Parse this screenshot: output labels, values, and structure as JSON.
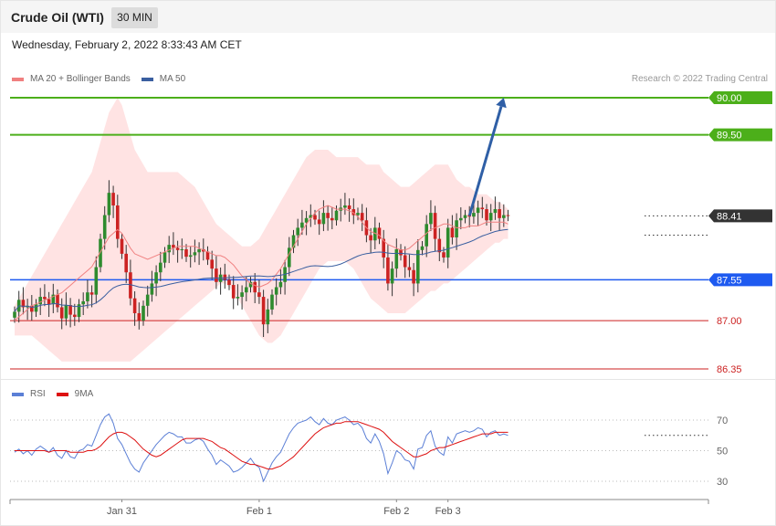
{
  "header": {
    "title": "Crude Oil (WTI)",
    "timeframe": "30 MIN",
    "datetime": "Wednesday, February 2, 2022 8:33:43 AM CET",
    "credit": "Research © 2022 Trading Central"
  },
  "colors": {
    "bollinger": "#f08080",
    "band_fill": "#ffe3e3",
    "ma50": "#3a5fa0",
    "target": "#4caf1a",
    "pivot": "#1e5af0",
    "support": "#cc2222",
    "last": "#333333",
    "arrow": "#2f5fa6",
    "candle_up": "#2e8b2e",
    "candle_down": "#cc2222",
    "rsi": "#5b7fd6",
    "rsi_ma": "#dd1111"
  },
  "legend_main": [
    {
      "label": "MA 20 + Bollinger Bands",
      "color": "#f08080"
    },
    {
      "label": "MA 50",
      "color": "#3a5fa0"
    }
  ],
  "legend_rsi": [
    {
      "label": "RSI",
      "color": "#5b7fd6"
    },
    {
      "label": "9MA",
      "color": "#dd1111"
    }
  ],
  "chart_data": [
    {
      "type": "candlestick",
      "ylim": [
        86.35,
        90.0
      ],
      "x_ticks": [
        {
          "label": "Jan 31",
          "index": 25
        },
        {
          "label": "Feb 1",
          "index": 57
        },
        {
          "label": "Feb 2",
          "index": 89
        },
        {
          "label": "Feb 3",
          "index": 101
        }
      ],
      "levels": [
        {
          "label": "90.00",
          "value": 90.0,
          "kind": "target",
          "style": "solid"
        },
        {
          "label": "89.50",
          "value": 89.5,
          "kind": "target",
          "style": "solid"
        },
        {
          "label": "88.41",
          "value": 88.41,
          "kind": "last",
          "style": "dotted"
        },
        {
          "label": "87.55",
          "value": 87.55,
          "kind": "pivot",
          "style": "solid"
        },
        {
          "label": "87.00",
          "value": 87.0,
          "kind": "support",
          "style": "thin"
        },
        {
          "label": "86.35",
          "value": 86.35,
          "kind": "support",
          "style": "thin"
        }
      ],
      "ma50_last": 88.15,
      "projection": {
        "from_index": 106,
        "from_value": 88.41,
        "to_index": 114,
        "to_value": 90.0
      },
      "close": [
        87.12,
        87.28,
        87.18,
        87.2,
        87.12,
        87.22,
        87.32,
        87.29,
        87.22,
        87.35,
        87.18,
        87.03,
        87.21,
        87.08,
        87.05,
        87.22,
        87.26,
        87.38,
        87.35,
        87.72,
        88.1,
        88.42,
        88.72,
        88.55,
        88.1,
        87.9,
        87.65,
        87.3,
        87.1,
        87.0,
        87.2,
        87.35,
        87.5,
        87.65,
        87.78,
        87.92,
        88.02,
        87.98,
        87.95,
        87.96,
        87.86,
        87.88,
        87.92,
        87.96,
        87.93,
        87.82,
        87.7,
        87.52,
        87.62,
        87.55,
        87.48,
        87.3,
        87.32,
        87.38,
        87.45,
        87.52,
        87.38,
        87.32,
        86.95,
        87.15,
        87.35,
        87.45,
        87.52,
        87.72,
        87.98,
        88.15,
        88.25,
        88.32,
        88.38,
        88.42,
        88.36,
        88.3,
        88.45,
        88.38,
        88.35,
        88.48,
        88.52,
        88.55,
        88.5,
        88.42,
        88.45,
        88.35,
        88.15,
        88.08,
        88.25,
        88.1,
        87.85,
        87.5,
        87.7,
        87.96,
        87.88,
        87.72,
        87.68,
        87.5,
        87.95,
        88.0,
        88.3,
        88.45,
        88.1,
        87.92,
        87.85,
        88.25,
        88.12,
        88.35,
        88.38,
        88.42,
        88.4,
        88.45,
        88.52,
        88.5,
        88.35,
        88.45,
        88.5,
        88.38,
        88.42,
        88.41
      ],
      "bb_upper": [
        87.2,
        87.3,
        87.4,
        87.5,
        87.6,
        87.7,
        87.8,
        87.9,
        88.0,
        88.1,
        88.2,
        88.3,
        88.4,
        88.5,
        88.6,
        88.7,
        88.8,
        88.9,
        89.0,
        89.2,
        89.4,
        89.6,
        89.8,
        89.9,
        90.0,
        89.9,
        89.7,
        89.5,
        89.3,
        89.2,
        89.1,
        89.0,
        89.0,
        89.0,
        89.0,
        89.0,
        89.0,
        89.0,
        89.0,
        88.95,
        88.9,
        88.85,
        88.8,
        88.7,
        88.6,
        88.5,
        88.4,
        88.3,
        88.25,
        88.2,
        88.15,
        88.1,
        88.05,
        88.0,
        88.0,
        88.0,
        88.05,
        88.1,
        88.2,
        88.3,
        88.4,
        88.5,
        88.6,
        88.7,
        88.8,
        88.9,
        89.0,
        89.1,
        89.2,
        89.25,
        89.3,
        89.3,
        89.3,
        89.3,
        89.25,
        89.2,
        89.2,
        89.2,
        89.2,
        89.2,
        89.2,
        89.15,
        89.1,
        89.1,
        89.1,
        89.1,
        89.0,
        88.95,
        88.9,
        88.85,
        88.8,
        88.8,
        88.8,
        88.85,
        88.9,
        88.95,
        89.0,
        89.05,
        89.1,
        89.1,
        89.1,
        89.1,
        89.0,
        88.9,
        88.85,
        88.8,
        88.8,
        88.75,
        88.7,
        88.7,
        88.7,
        88.65,
        88.6,
        88.6,
        88.55,
        88.5
      ],
      "bb_lower": [
        86.8,
        86.8,
        86.8,
        86.8,
        86.8,
        86.75,
        86.7,
        86.65,
        86.6,
        86.55,
        86.5,
        86.45,
        86.45,
        86.45,
        86.45,
        86.45,
        86.45,
        86.45,
        86.45,
        86.45,
        86.45,
        86.45,
        86.45,
        86.45,
        86.45,
        86.45,
        86.45,
        86.45,
        86.5,
        86.55,
        86.6,
        86.65,
        86.7,
        86.75,
        86.8,
        86.85,
        86.9,
        86.95,
        87.0,
        87.05,
        87.1,
        87.15,
        87.2,
        87.25,
        87.3,
        87.35,
        87.4,
        87.45,
        87.5,
        87.5,
        87.45,
        87.4,
        87.3,
        87.2,
        87.1,
        87.0,
        86.9,
        86.8,
        86.75,
        86.7,
        86.7,
        86.75,
        86.8,
        86.9,
        87.0,
        87.1,
        87.2,
        87.3,
        87.4,
        87.5,
        87.6,
        87.7,
        87.75,
        87.8,
        87.8,
        87.8,
        87.8,
        87.8,
        87.75,
        87.7,
        87.6,
        87.5,
        87.4,
        87.3,
        87.25,
        87.2,
        87.15,
        87.1,
        87.1,
        87.1,
        87.1,
        87.1,
        87.15,
        87.2,
        87.25,
        87.3,
        87.35,
        87.4,
        87.4,
        87.45,
        87.5,
        87.5,
        87.55,
        87.6,
        87.65,
        87.7,
        87.75,
        87.8,
        87.85,
        87.9,
        87.95,
        88.0,
        88.05,
        88.05,
        88.1,
        88.1
      ]
    },
    {
      "type": "line",
      "ylim": [
        20,
        80
      ],
      "y_ticks": [
        {
          "label": "70",
          "value": 70
        },
        {
          "label": "50",
          "value": 50
        },
        {
          "label": "30",
          "value": 30
        }
      ],
      "series": [
        {
          "name": "RSI",
          "color": "#5b7fd6",
          "values": [
            49,
            51,
            48,
            50,
            47,
            51,
            53,
            51,
            49,
            52,
            47,
            45,
            50,
            46,
            45,
            50,
            51,
            54,
            53,
            60,
            67,
            72,
            74,
            68,
            58,
            54,
            48,
            42,
            38,
            36,
            42,
            46,
            50,
            54,
            57,
            60,
            62,
            61,
            59,
            59,
            55,
            55,
            57,
            58,
            56,
            51,
            47,
            41,
            44,
            42,
            40,
            36,
            37,
            39,
            42,
            45,
            41,
            39,
            30,
            36,
            42,
            46,
            49,
            55,
            61,
            65,
            68,
            69,
            70,
            72,
            69,
            67,
            71,
            68,
            67,
            70,
            71,
            72,
            70,
            67,
            68,
            65,
            58,
            55,
            61,
            56,
            48,
            35,
            42,
            50,
            48,
            44,
            43,
            38,
            51,
            52,
            60,
            63,
            53,
            49,
            47,
            59,
            55,
            61,
            62,
            63,
            62,
            63,
            65,
            64,
            59,
            62,
            63,
            60,
            61,
            60
          ]
        },
        {
          "name": "9MA",
          "color": "#dd1111",
          "values": [
            50,
            50,
            50,
            50,
            50,
            50,
            50,
            50,
            49,
            50,
            50,
            50,
            50,
            49,
            49,
            49,
            49,
            50,
            50,
            51,
            53,
            56,
            59,
            61,
            62,
            62,
            61,
            59,
            57,
            54,
            51,
            49,
            47,
            46,
            47,
            49,
            51,
            53,
            55,
            57,
            58,
            58,
            58,
            58,
            58,
            57,
            56,
            54,
            52,
            51,
            49,
            47,
            45,
            43,
            42,
            41,
            41,
            40,
            39,
            38,
            38,
            39,
            40,
            42,
            44,
            46,
            49,
            52,
            55,
            58,
            61,
            63,
            65,
            66,
            67,
            68,
            68,
            69,
            69,
            69,
            69,
            68,
            67,
            66,
            65,
            64,
            62,
            59,
            56,
            54,
            52,
            50,
            48,
            46,
            46,
            47,
            48,
            50,
            51,
            52,
            52,
            53,
            54,
            55,
            56,
            57,
            58,
            59,
            60,
            61,
            61,
            61,
            62,
            62,
            62,
            62
          ]
        }
      ]
    }
  ]
}
